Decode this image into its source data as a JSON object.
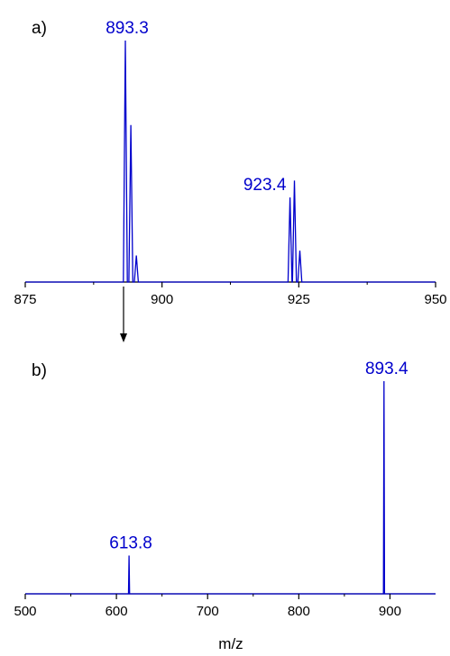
{
  "chart_data": [
    {
      "type": "line",
      "panel_label": "a)",
      "xlim": [
        875,
        950
      ],
      "xticks": [
        875,
        900,
        925,
        950
      ],
      "grid": false,
      "series_color": "#0000cc",
      "series": [
        {
          "peaks": [
            {
              "x": 893.3,
              "y": 1.0
            },
            {
              "x": 894.3,
              "y": 0.65
            },
            {
              "x": 895.3,
              "y": 0.11
            },
            {
              "x": 923.4,
              "y": 0.35
            },
            {
              "x": 924.2,
              "y": 0.42
            },
            {
              "x": 925.2,
              "y": 0.13
            }
          ]
        }
      ],
      "annotations": [
        {
          "text": "893.3",
          "x": 893.3
        },
        {
          "text": "923.4",
          "x": 923.4
        }
      ]
    },
    {
      "type": "line",
      "panel_label": "b)",
      "xlim": [
        500,
        950
      ],
      "xticks": [
        500,
        600,
        700,
        800,
        900
      ],
      "xlabel": "m/z",
      "grid": false,
      "series_color": "#0000cc",
      "series": [
        {
          "peaks": [
            {
              "x": 613.8,
              "y": 0.18
            },
            {
              "x": 893.4,
              "y": 1.0
            }
          ]
        }
      ],
      "annotations": [
        {
          "text": "613.8",
          "x": 613.8
        },
        {
          "text": "893.4",
          "x": 893.4
        }
      ]
    }
  ]
}
